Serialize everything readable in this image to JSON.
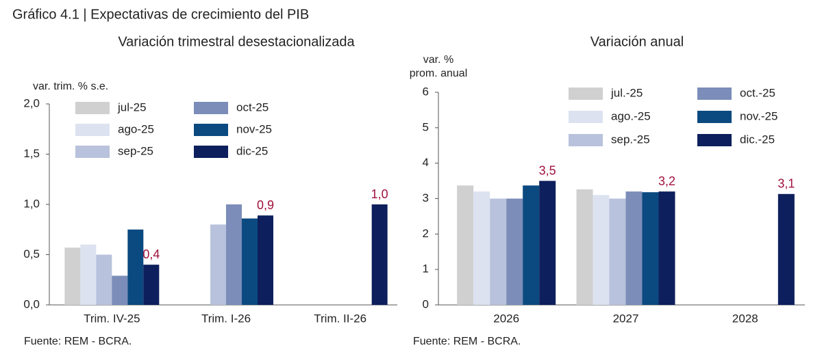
{
  "title": "Gráfico 4.1 | Expectativas de crecimiento del PIB",
  "chart_data": [
    {
      "type": "bar",
      "title": "Variación trimestral desestacionalizada",
      "y_label": [
        "var. trim. % s.e."
      ],
      "source": "Fuente: REM - BCRA.",
      "categories": [
        "Trim. IV-25",
        "Trim. I-26",
        "Trim. II-26"
      ],
      "ylim": [
        0,
        2.0
      ],
      "yticks": [
        {
          "value": 0,
          "label": "0,0"
        },
        {
          "value": 0.5,
          "label": "0,5"
        },
        {
          "value": 1.0,
          "label": "1,0"
        },
        {
          "value": 1.5,
          "label": "1,5"
        },
        {
          "value": 2.0,
          "label": "2,0"
        }
      ],
      "grid": false,
      "series": [
        {
          "name": "jul-25",
          "color": "#d0d0d0",
          "values": [
            0.57,
            null,
            null
          ]
        },
        {
          "name": "ago-25",
          "color": "#dce2f0",
          "values": [
            0.6,
            null,
            null
          ]
        },
        {
          "name": "sep-25",
          "color": "#b8c2dc",
          "values": [
            0.5,
            0.8,
            null
          ]
        },
        {
          "name": "oct-25",
          "color": "#7b8db8",
          "values": [
            0.29,
            1.0,
            null
          ]
        },
        {
          "name": "nov-25",
          "color": "#0b4a80",
          "values": [
            0.75,
            0.86,
            null
          ]
        },
        {
          "name": "dic-25",
          "color": "#0d1f5c",
          "values": [
            0.4,
            0.89,
            1.0
          ],
          "value_labels": [
            "0,4",
            "0,9",
            "1,0"
          ]
        }
      ]
    },
    {
      "type": "bar",
      "title": "Variación anual",
      "y_label": [
        "var. %",
        "prom. anual"
      ],
      "source": "Fuente: REM - BCRA.",
      "categories": [
        "2026",
        "2027",
        "2028"
      ],
      "ylim": [
        0,
        6
      ],
      "yticks": [
        0,
        1,
        2,
        3,
        4,
        5,
        6
      ],
      "grid": false,
      "series": [
        {
          "name": "jul.-25",
          "color": "#d0d0d0",
          "values": [
            3.37,
            3.26,
            null
          ]
        },
        {
          "name": "ago.-25",
          "color": "#dce2f0",
          "values": [
            3.2,
            3.1,
            null
          ]
        },
        {
          "name": "sep.-25",
          "color": "#b8c2dc",
          "values": [
            3.0,
            3.0,
            null
          ]
        },
        {
          "name": "oct.-25",
          "color": "#7b8db8",
          "values": [
            3.0,
            3.2,
            null
          ]
        },
        {
          "name": "nov.-25",
          "color": "#0b4a80",
          "values": [
            3.37,
            3.18,
            null
          ]
        },
        {
          "name": "dic.-25",
          "color": "#0d1f5c",
          "values": [
            3.5,
            3.2,
            3.13
          ],
          "value_labels": [
            "3,5",
            "3,2",
            "3,1"
          ]
        }
      ]
    }
  ]
}
